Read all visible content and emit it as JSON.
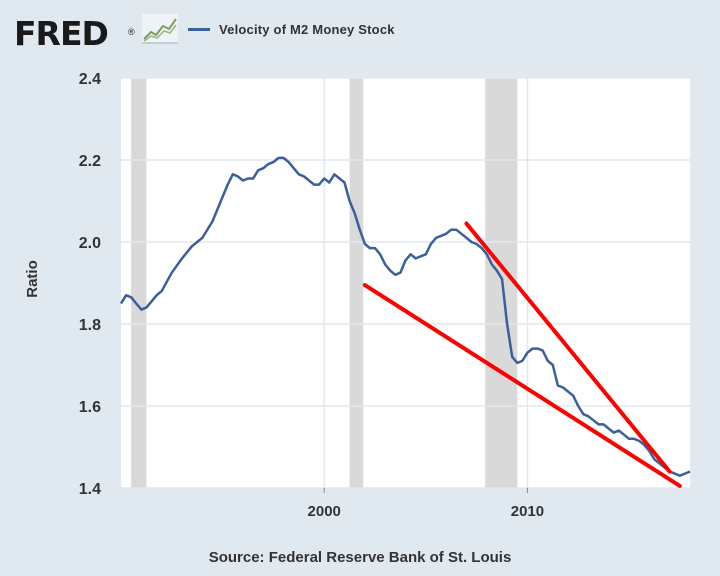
{
  "header": {
    "logo_text": "FRED",
    "logo_registered": "®",
    "logo_icon": "line-chart-icon"
  },
  "source": "Source: Federal Reserve Bank of St. Louis",
  "colors": {
    "series": "#3a5f9a",
    "recession": "#d9d9d9",
    "annotation": "#ff0000",
    "background": "#e1e9f0",
    "plot_bg": "#ffffff",
    "grid": "#e1e9f0"
  },
  "chart_data": {
    "type": "line",
    "title": "",
    "xlabel": "",
    "ylabel": "Ratio",
    "xlim": [
      1990,
      2018
    ],
    "ylim": [
      1.4,
      2.4
    ],
    "x_ticks": [
      "2000",
      "2010"
    ],
    "x_tick_values": [
      2000,
      2010
    ],
    "y_ticks": [
      "1.4",
      "1.6",
      "1.8",
      "2.0",
      "2.2",
      "2.4"
    ],
    "y_tick_values": [
      1.4,
      1.6,
      1.8,
      2.0,
      2.2,
      2.4
    ],
    "grid": true,
    "legend_position": "top",
    "series": [
      {
        "name": "Velocity of M2 Money Stock",
        "points": [
          [
            1990.0,
            1.85
          ],
          [
            1990.25,
            1.87
          ],
          [
            1990.5,
            1.865
          ],
          [
            1990.75,
            1.85
          ],
          [
            1991.0,
            1.835
          ],
          [
            1991.25,
            1.84
          ],
          [
            1991.5,
            1.855
          ],
          [
            1991.75,
            1.87
          ],
          [
            1992.0,
            1.88
          ],
          [
            1992.5,
            1.925
          ],
          [
            1993.0,
            1.96
          ],
          [
            1993.5,
            1.99
          ],
          [
            1994.0,
            2.01
          ],
          [
            1994.5,
            2.05
          ],
          [
            1994.75,
            2.08
          ],
          [
            1995.0,
            2.11
          ],
          [
            1995.25,
            2.14
          ],
          [
            1995.5,
            2.165
          ],
          [
            1995.75,
            2.16
          ],
          [
            1996.0,
            2.15
          ],
          [
            1996.25,
            2.155
          ],
          [
            1996.5,
            2.155
          ],
          [
            1996.75,
            2.175
          ],
          [
            1997.0,
            2.18
          ],
          [
            1997.25,
            2.19
          ],
          [
            1997.5,
            2.195
          ],
          [
            1997.75,
            2.205
          ],
          [
            1998.0,
            2.205
          ],
          [
            1998.25,
            2.195
          ],
          [
            1998.5,
            2.18
          ],
          [
            1998.75,
            2.165
          ],
          [
            1999.0,
            2.16
          ],
          [
            1999.25,
            2.15
          ],
          [
            1999.5,
            2.14
          ],
          [
            1999.75,
            2.14
          ],
          [
            2000.0,
            2.155
          ],
          [
            2000.25,
            2.145
          ],
          [
            2000.5,
            2.165
          ],
          [
            2000.75,
            2.155
          ],
          [
            2001.0,
            2.145
          ],
          [
            2001.25,
            2.1
          ],
          [
            2001.5,
            2.07
          ],
          [
            2001.75,
            2.03
          ],
          [
            2002.0,
            1.995
          ],
          [
            2002.25,
            1.985
          ],
          [
            2002.5,
            1.985
          ],
          [
            2002.75,
            1.97
          ],
          [
            2003.0,
            1.945
          ],
          [
            2003.25,
            1.93
          ],
          [
            2003.5,
            1.92
          ],
          [
            2003.75,
            1.925
          ],
          [
            2004.0,
            1.955
          ],
          [
            2004.25,
            1.97
          ],
          [
            2004.5,
            1.96
          ],
          [
            2004.75,
            1.965
          ],
          [
            2005.0,
            1.97
          ],
          [
            2005.25,
            1.995
          ],
          [
            2005.5,
            2.01
          ],
          [
            2005.75,
            2.015
          ],
          [
            2006.0,
            2.02
          ],
          [
            2006.25,
            2.03
          ],
          [
            2006.5,
            2.03
          ],
          [
            2006.75,
            2.02
          ],
          [
            2007.0,
            2.01
          ],
          [
            2007.25,
            2.0
          ],
          [
            2007.5,
            1.995
          ],
          [
            2007.75,
            1.985
          ],
          [
            2008.0,
            1.97
          ],
          [
            2008.25,
            1.945
          ],
          [
            2008.5,
            1.93
          ],
          [
            2008.75,
            1.91
          ],
          [
            2009.0,
            1.8
          ],
          [
            2009.25,
            1.72
          ],
          [
            2009.5,
            1.705
          ],
          [
            2009.75,
            1.71
          ],
          [
            2010.0,
            1.73
          ],
          [
            2010.25,
            1.74
          ],
          [
            2010.5,
            1.74
          ],
          [
            2010.75,
            1.735
          ],
          [
            2011.0,
            1.71
          ],
          [
            2011.25,
            1.7
          ],
          [
            2011.5,
            1.65
          ],
          [
            2011.75,
            1.645
          ],
          [
            2012.0,
            1.635
          ],
          [
            2012.25,
            1.625
          ],
          [
            2012.5,
            1.6
          ],
          [
            2012.75,
            1.58
          ],
          [
            2013.0,
            1.575
          ],
          [
            2013.25,
            1.565
          ],
          [
            2013.5,
            1.555
          ],
          [
            2013.75,
            1.555
          ],
          [
            2014.0,
            1.545
          ],
          [
            2014.25,
            1.535
          ],
          [
            2014.5,
            1.54
          ],
          [
            2014.75,
            1.53
          ],
          [
            2015.0,
            1.52
          ],
          [
            2015.25,
            1.52
          ],
          [
            2015.5,
            1.515
          ],
          [
            2015.75,
            1.505
          ],
          [
            2016.0,
            1.49
          ],
          [
            2016.25,
            1.47
          ],
          [
            2016.5,
            1.46
          ],
          [
            2016.75,
            1.45
          ],
          [
            2017.0,
            1.44
          ],
          [
            2017.25,
            1.435
          ],
          [
            2017.5,
            1.43
          ],
          [
            2017.75,
            1.435
          ],
          [
            2018.0,
            1.44
          ]
        ]
      }
    ],
    "recession_bands": [
      [
        1990.5,
        1991.25
      ],
      [
        2001.25,
        2001.92
      ],
      [
        2007.92,
        2009.5
      ]
    ],
    "annotation_lines": [
      [
        [
          2002.0,
          1.895
        ],
        [
          2017.5,
          1.405
        ]
      ],
      [
        [
          2007.0,
          2.045
        ],
        [
          2017.0,
          1.44
        ]
      ]
    ]
  }
}
